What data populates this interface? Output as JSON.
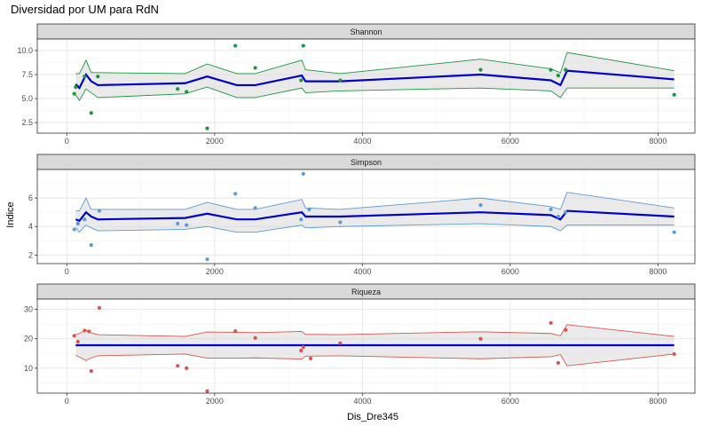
{
  "chart_data": {
    "type": "scatter",
    "title": "Diversidad por UM para RdN",
    "xlabel": "Dis_Dre345",
    "ylabel": "Indice",
    "xlim": [
      -400,
      8500
    ],
    "x_ticks": [
      0,
      2000,
      4000,
      6000,
      8000
    ],
    "grid": true,
    "panels": [
      {
        "name": "Shannon",
        "color": "#1a9641",
        "ylim": [
          1.4,
          11.2
        ],
        "y_ticks": [
          2.5,
          5.0,
          7.5,
          10.0
        ],
        "y_tick_labels": [
          "2.5",
          "5.0",
          "7.5",
          "10.0"
        ],
        "points": [
          [
            100,
            5.5
          ],
          [
            120,
            6.2
          ],
          [
            240,
            7.3
          ],
          [
            330,
            3.5
          ],
          [
            420,
            7.3
          ],
          [
            1500,
            6.0
          ],
          [
            1620,
            5.7
          ],
          [
            1900,
            1.9
          ],
          [
            2280,
            10.5
          ],
          [
            2550,
            8.2
          ],
          [
            3170,
            6.9
          ],
          [
            3200,
            10.5
          ],
          [
            3700,
            6.9
          ],
          [
            5600,
            8.0
          ],
          [
            6550,
            8.0
          ],
          [
            6650,
            7.4
          ],
          [
            6750,
            8.0
          ],
          [
            8220,
            5.4
          ]
        ],
        "fit": [
          [
            120,
            6.5
          ],
          [
            170,
            6.1
          ],
          [
            260,
            7.5
          ],
          [
            330,
            6.8
          ],
          [
            420,
            6.4
          ],
          [
            1600,
            6.6
          ],
          [
            1900,
            7.3
          ],
          [
            2300,
            6.4
          ],
          [
            2550,
            6.4
          ],
          [
            3180,
            7.4
          ],
          [
            3230,
            6.8
          ],
          [
            3700,
            6.8
          ],
          [
            5600,
            7.5
          ],
          [
            6550,
            6.9
          ],
          [
            6680,
            6.4
          ],
          [
            6770,
            7.9
          ],
          [
            8220,
            7.0
          ]
        ],
        "upper": [
          [
            120,
            7.6
          ],
          [
            170,
            7.6
          ],
          [
            260,
            9.0
          ],
          [
            330,
            7.7
          ],
          [
            420,
            7.7
          ],
          [
            1600,
            7.6
          ],
          [
            1900,
            8.6
          ],
          [
            2300,
            7.6
          ],
          [
            2550,
            7.6
          ],
          [
            3180,
            9.0
          ],
          [
            3230,
            8.0
          ],
          [
            3700,
            7.6
          ],
          [
            5600,
            9.1
          ],
          [
            6550,
            8.1
          ],
          [
            6680,
            7.7
          ],
          [
            6770,
            9.8
          ],
          [
            8220,
            7.9
          ]
        ],
        "lower": [
          [
            120,
            5.4
          ],
          [
            170,
            4.8
          ],
          [
            260,
            6.0
          ],
          [
            330,
            5.6
          ],
          [
            420,
            5.1
          ],
          [
            1600,
            5.5
          ],
          [
            1900,
            6.2
          ],
          [
            2300,
            5.1
          ],
          [
            2550,
            5.1
          ],
          [
            3180,
            6.1
          ],
          [
            3230,
            5.6
          ],
          [
            3700,
            5.8
          ],
          [
            5600,
            6.1
          ],
          [
            6550,
            5.8
          ],
          [
            6680,
            5.1
          ],
          [
            6770,
            6.1
          ],
          [
            8220,
            6.1
          ]
        ]
      },
      {
        "name": "Simpson",
        "color": "#5b9bd5",
        "ylim": [
          1.4,
          8.0
        ],
        "y_ticks": [
          2,
          4,
          6
        ],
        "y_tick_labels": [
          "2",
          "4",
          "6"
        ],
        "points": [
          [
            100,
            3.8
          ],
          [
            150,
            4.2
          ],
          [
            240,
            4.5
          ],
          [
            330,
            2.7
          ],
          [
            440,
            5.1
          ],
          [
            1500,
            4.2
          ],
          [
            1620,
            4.1
          ],
          [
            1900,
            1.7
          ],
          [
            2280,
            6.3
          ],
          [
            2550,
            5.3
          ],
          [
            3170,
            4.5
          ],
          [
            3200,
            7.7
          ],
          [
            3280,
            5.2
          ],
          [
            3700,
            4.3
          ],
          [
            5600,
            5.5
          ],
          [
            6550,
            5.2
          ],
          [
            6650,
            4.7
          ],
          [
            6750,
            5.0
          ],
          [
            8220,
            3.6
          ]
        ],
        "fit": [
          [
            120,
            4.5
          ],
          [
            170,
            4.4
          ],
          [
            260,
            5.0
          ],
          [
            330,
            4.7
          ],
          [
            420,
            4.5
          ],
          [
            1600,
            4.6
          ],
          [
            1900,
            4.9
          ],
          [
            2300,
            4.5
          ],
          [
            2550,
            4.5
          ],
          [
            3180,
            5.0
          ],
          [
            3230,
            4.7
          ],
          [
            3700,
            4.7
          ],
          [
            5600,
            5.0
          ],
          [
            6550,
            4.8
          ],
          [
            6680,
            4.5
          ],
          [
            6770,
            5.1
          ],
          [
            8220,
            4.7
          ]
        ],
        "upper": [
          [
            120,
            5.1
          ],
          [
            170,
            5.1
          ],
          [
            260,
            6.0
          ],
          [
            330,
            5.2
          ],
          [
            420,
            5.2
          ],
          [
            1600,
            5.2
          ],
          [
            1900,
            5.7
          ],
          [
            2300,
            5.2
          ],
          [
            2550,
            5.2
          ],
          [
            3180,
            5.9
          ],
          [
            3230,
            5.3
          ],
          [
            3700,
            5.2
          ],
          [
            5600,
            6.0
          ],
          [
            6550,
            5.4
          ],
          [
            6680,
            5.2
          ],
          [
            6770,
            6.4
          ],
          [
            8220,
            5.3
          ]
        ],
        "lower": [
          [
            120,
            3.9
          ],
          [
            170,
            3.6
          ],
          [
            260,
            4.1
          ],
          [
            330,
            3.9
          ],
          [
            420,
            3.7
          ],
          [
            1600,
            3.8
          ],
          [
            1900,
            4.0
          ],
          [
            2300,
            3.6
          ],
          [
            2550,
            3.6
          ],
          [
            3180,
            4.1
          ],
          [
            3230,
            3.9
          ],
          [
            3700,
            4.0
          ],
          [
            5600,
            4.2
          ],
          [
            6550,
            4.0
          ],
          [
            6680,
            3.7
          ],
          [
            6770,
            4.1
          ],
          [
            8220,
            4.1
          ]
        ]
      },
      {
        "name": "Riqueza",
        "color": "#d9544f",
        "ylim": [
          1.5,
          33.5
        ],
        "y_ticks": [
          10,
          20,
          30
        ],
        "y_tick_labels": [
          "10",
          "20",
          "30"
        ],
        "points": [
          [
            100,
            21.0
          ],
          [
            150,
            19.0
          ],
          [
            240,
            22.8
          ],
          [
            300,
            22.5
          ],
          [
            330,
            9.0
          ],
          [
            440,
            30.5
          ],
          [
            1500,
            10.8
          ],
          [
            1620,
            10.0
          ],
          [
            1900,
            2.2
          ],
          [
            2280,
            22.6
          ],
          [
            2550,
            20.3
          ],
          [
            3170,
            16.0
          ],
          [
            3200,
            17.2
          ],
          [
            3300,
            13.3
          ],
          [
            3700,
            18.5
          ],
          [
            5600,
            20.0
          ],
          [
            6550,
            25.4
          ],
          [
            6650,
            11.8
          ],
          [
            6750,
            23.0
          ],
          [
            8220,
            14.8
          ]
        ],
        "fit": [
          [
            120,
            17.8
          ],
          [
            8220,
            17.8
          ]
        ],
        "upper": [
          [
            120,
            21.4
          ],
          [
            170,
            21.8
          ],
          [
            260,
            23.0
          ],
          [
            330,
            22.0
          ],
          [
            420,
            21.4
          ],
          [
            1600,
            20.8
          ],
          [
            1900,
            22.3
          ],
          [
            2300,
            22.2
          ],
          [
            2550,
            22.1
          ],
          [
            3180,
            22.5
          ],
          [
            3230,
            21.5
          ],
          [
            3700,
            21.4
          ],
          [
            5600,
            22.4
          ],
          [
            6550,
            21.8
          ],
          [
            6680,
            21.0
          ],
          [
            6770,
            24.8
          ],
          [
            8220,
            20.8
          ]
        ],
        "lower": [
          [
            120,
            14.3
          ],
          [
            170,
            13.8
          ],
          [
            260,
            12.6
          ],
          [
            330,
            13.5
          ],
          [
            420,
            14.2
          ],
          [
            1600,
            14.8
          ],
          [
            1900,
            13.4
          ],
          [
            2300,
            13.4
          ],
          [
            2550,
            13.5
          ],
          [
            3180,
            13.1
          ],
          [
            3230,
            14.1
          ],
          [
            3700,
            14.2
          ],
          [
            5600,
            13.2
          ],
          [
            6550,
            13.9
          ],
          [
            6680,
            14.6
          ],
          [
            6770,
            10.8
          ],
          [
            8220,
            14.8
          ]
        ]
      }
    ]
  }
}
